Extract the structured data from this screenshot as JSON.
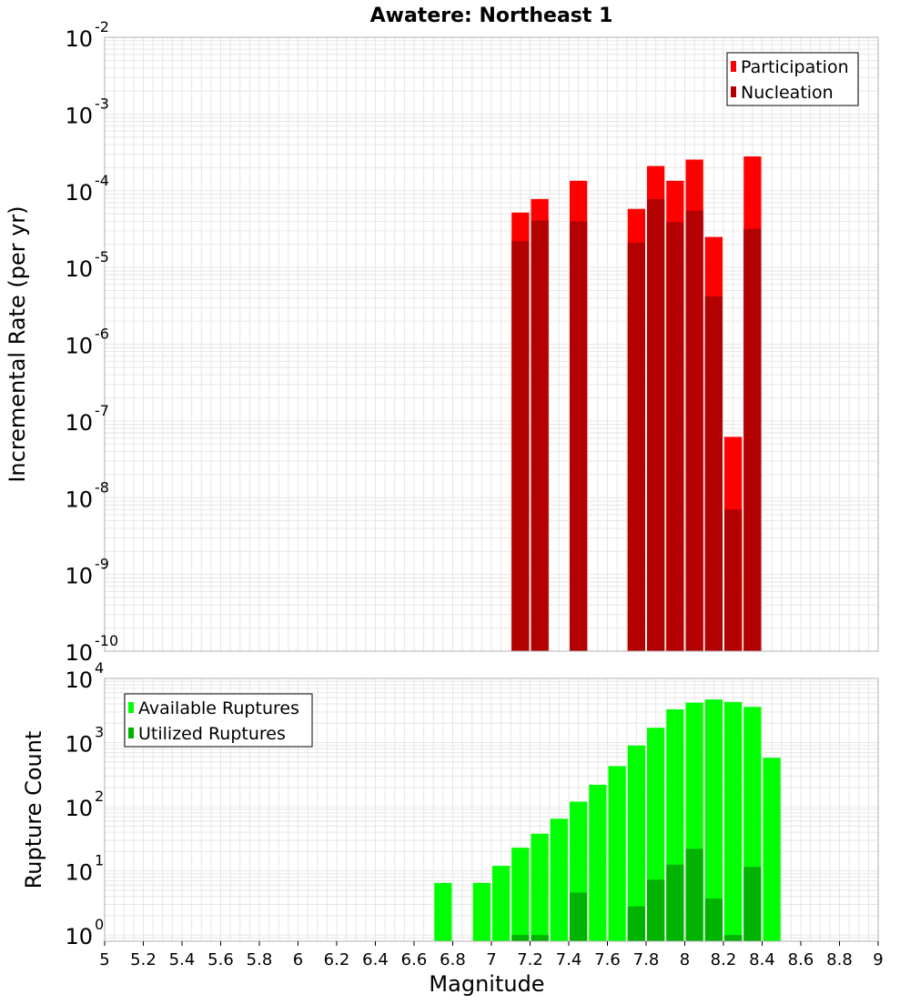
{
  "chart_data": [
    {
      "type": "bar",
      "title": "Awatere: Northeast 1",
      "ylabel": "Incremental Rate (per yr)",
      "xlabel": "",
      "y_scale": "log",
      "ylim": [
        1e-10,
        0.01
      ],
      "xlim": [
        5,
        9
      ],
      "legend": "top-right",
      "grid": true,
      "y_ticks": [
        {
          "base": "10",
          "exp": "-10",
          "value": 1e-10
        },
        {
          "base": "10",
          "exp": "-9",
          "value": 1e-09
        },
        {
          "base": "10",
          "exp": "-8",
          "value": 1e-08
        },
        {
          "base": "10",
          "exp": "-7",
          "value": 1e-07
        },
        {
          "base": "10",
          "exp": "-6",
          "value": 1e-06
        },
        {
          "base": "10",
          "exp": "-5",
          "value": 1e-05
        },
        {
          "base": "10",
          "exp": "-4",
          "value": 0.0001
        },
        {
          "base": "10",
          "exp": "-3",
          "value": 0.001
        },
        {
          "base": "10",
          "exp": "-2",
          "value": 0.01
        }
      ],
      "series": [
        {
          "name": "Participation",
          "color": "#ff0000",
          "points": [
            {
              "x": 7.15,
              "y": 5.2e-05
            },
            {
              "x": 7.25,
              "y": 7.8e-05
            },
            {
              "x": 7.45,
              "y": 0.000135
            },
            {
              "x": 7.75,
              "y": 5.8e-05
            },
            {
              "x": 7.85,
              "y": 0.00021
            },
            {
              "x": 7.95,
              "y": 0.000135
            },
            {
              "x": 8.05,
              "y": 0.000255
            },
            {
              "x": 8.15,
              "y": 2.5e-05
            },
            {
              "x": 8.25,
              "y": 6.2e-08
            },
            {
              "x": 8.35,
              "y": 0.00028
            }
          ]
        },
        {
          "name": "Nucleation",
          "color": "#b30000",
          "points": [
            {
              "x": 7.15,
              "y": 2.2e-05
            },
            {
              "x": 7.25,
              "y": 4.1e-05
            },
            {
              "x": 7.45,
              "y": 4e-05
            },
            {
              "x": 7.75,
              "y": 2.1e-05
            },
            {
              "x": 7.85,
              "y": 7.8e-05
            },
            {
              "x": 7.95,
              "y": 3.9e-05
            },
            {
              "x": 8.05,
              "y": 5.5e-05
            },
            {
              "x": 8.15,
              "y": 4.2e-06
            },
            {
              "x": 8.25,
              "y": 7e-09
            },
            {
              "x": 8.35,
              "y": 3.2e-05
            }
          ]
        }
      ]
    },
    {
      "type": "bar",
      "title": "",
      "ylabel": "Rupture Count",
      "xlabel": "Magnitude",
      "y_scale": "log",
      "ylim": [
        0.8,
        10000
      ],
      "xlim": [
        5,
        9
      ],
      "legend": "top-left",
      "grid": true,
      "x_ticks": [
        "5",
        "5.2",
        "5.4",
        "5.6",
        "5.8",
        "6",
        "6.2",
        "6.4",
        "6.6",
        "6.8",
        "7",
        "7.2",
        "7.4",
        "7.6",
        "7.8",
        "8",
        "8.2",
        "8.4",
        "8.6",
        "8.8",
        "9"
      ],
      "y_ticks": [
        {
          "base": "10",
          "exp": "0",
          "value": 1
        },
        {
          "base": "10",
          "exp": "1",
          "value": 10
        },
        {
          "base": "10",
          "exp": "2",
          "value": 100
        },
        {
          "base": "10",
          "exp": "3",
          "value": 1000
        },
        {
          "base": "10",
          "exp": "4",
          "value": 10000
        }
      ],
      "series": [
        {
          "name": "Available Ruptures",
          "color": "#00ff00",
          "points": [
            {
              "x": 6.75,
              "y": 6.5
            },
            {
              "x": 6.95,
              "y": 6.5
            },
            {
              "x": 7.05,
              "y": 12
            },
            {
              "x": 7.15,
              "y": 23
            },
            {
              "x": 7.25,
              "y": 38
            },
            {
              "x": 7.35,
              "y": 65
            },
            {
              "x": 7.45,
              "y": 120
            },
            {
              "x": 7.55,
              "y": 220
            },
            {
              "x": 7.65,
              "y": 430
            },
            {
              "x": 7.75,
              "y": 900
            },
            {
              "x": 7.85,
              "y": 1700
            },
            {
              "x": 7.95,
              "y": 3300
            },
            {
              "x": 8.05,
              "y": 4200
            },
            {
              "x": 8.15,
              "y": 4700
            },
            {
              "x": 8.25,
              "y": 4300
            },
            {
              "x": 8.35,
              "y": 3600
            },
            {
              "x": 8.45,
              "y": 580
            }
          ]
        },
        {
          "name": "Utilized Ruptures",
          "color": "#00b300",
          "points": [
            {
              "x": 7.15,
              "y": 1
            },
            {
              "x": 7.25,
              "y": 1
            },
            {
              "x": 7.45,
              "y": 4.6
            },
            {
              "x": 7.75,
              "y": 2.8
            },
            {
              "x": 7.85,
              "y": 7.3
            },
            {
              "x": 7.95,
              "y": 12.5
            },
            {
              "x": 8.05,
              "y": 22
            },
            {
              "x": 8.15,
              "y": 3.7
            },
            {
              "x": 8.25,
              "y": 1
            },
            {
              "x": 8.35,
              "y": 11.5
            }
          ]
        }
      ]
    }
  ]
}
